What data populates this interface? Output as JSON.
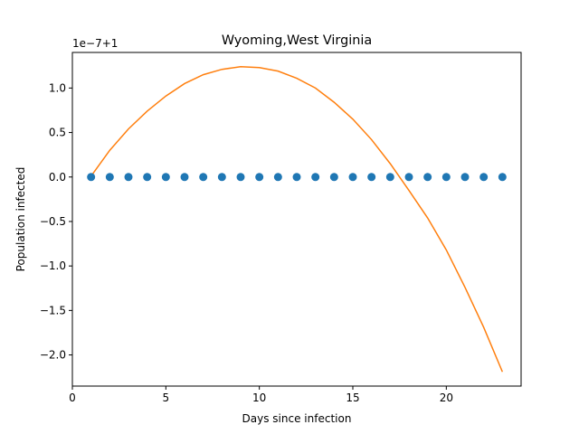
{
  "chart_data": {
    "type": "scatter",
    "title": "Wyoming,West Virginia",
    "xlabel": "Days since infection",
    "ylabel": "Population infected",
    "offset_label": "1e−7+1",
    "xlim": [
      0,
      24
    ],
    "ylim": [
      -2.35,
      1.4
    ],
    "xticks": [
      0,
      5,
      10,
      15,
      20
    ],
    "xtick_labels": [
      "0",
      "5",
      "10",
      "15",
      "20"
    ],
    "yticks": [
      -2.0,
      -1.5,
      -1.0,
      -0.5,
      0.0,
      0.5,
      1.0
    ],
    "ytick_labels": [
      "−2.0",
      "−1.5",
      "−1.0",
      "−0.5",
      "0.0",
      "0.5",
      "1.0"
    ],
    "grid": false,
    "series": [
      {
        "kind": "scatter",
        "color": "#1f77b4",
        "x": [
          1,
          2,
          3,
          4,
          5,
          6,
          7,
          8,
          9,
          10,
          11,
          12,
          13,
          14,
          15,
          16,
          17,
          18,
          19,
          20,
          21,
          22,
          23
        ],
        "y": [
          0,
          0,
          0,
          0,
          0,
          0,
          0,
          0,
          0,
          0,
          0,
          0,
          0,
          0,
          0,
          0,
          0,
          0,
          0,
          0,
          0,
          0,
          0
        ]
      },
      {
        "kind": "line",
        "color": "#ff7f0e",
        "x": [
          1,
          2,
          3,
          4,
          5,
          6,
          7,
          8,
          9,
          10,
          11,
          12,
          13,
          14,
          15,
          16,
          17,
          18,
          19,
          20,
          21,
          22,
          23
        ],
        "y": [
          0.01,
          0.3,
          0.54,
          0.74,
          0.91,
          1.05,
          1.15,
          1.21,
          1.24,
          1.23,
          1.19,
          1.11,
          1.0,
          0.84,
          0.65,
          0.42,
          0.15,
          -0.15,
          -0.46,
          -0.82,
          -1.24,
          -1.69,
          -2.19
        ]
      }
    ]
  }
}
